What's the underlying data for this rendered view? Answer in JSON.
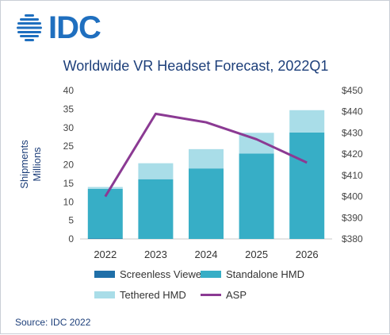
{
  "logo": {
    "text": "IDC"
  },
  "chart_data": {
    "type": "bar",
    "title": "Worldwide VR Headset Forecast, 2022Q1",
    "categories": [
      "2022",
      "2023",
      "2024",
      "2025",
      "2026"
    ],
    "ylabel": "Shipments\nMillions",
    "ylim": [
      0,
      40
    ],
    "yticks": [
      0,
      5,
      10,
      15,
      20,
      25,
      30,
      35,
      40
    ],
    "y2lim": [
      380,
      450
    ],
    "y2ticks": [
      "$380",
      "$390",
      "$400",
      "$410",
      "$420",
      "$430",
      "$440",
      "$450"
    ],
    "y2tick_values": [
      380,
      390,
      400,
      410,
      420,
      430,
      440,
      450
    ],
    "stacked": true,
    "series": [
      {
        "name": "Screenless Viewer",
        "values": [
          0.1,
          0,
          0,
          0,
          0
        ],
        "color": "#1f6fa8"
      },
      {
        "name": "Standalone HMD",
        "values": [
          13.4,
          16.1,
          19.0,
          23.0,
          28.7
        ],
        "color": "#37aec6"
      },
      {
        "name": "Tethered HMD",
        "values": [
          0.5,
          4.3,
          5.2,
          5.6,
          6.0
        ],
        "color": "#a9dde8"
      }
    ],
    "line_series": {
      "name": "ASP",
      "axis": "secondary",
      "values": [
        400,
        439,
        435,
        427,
        416
      ],
      "color": "#8b3a93"
    },
    "grid": false,
    "legend": "bottom"
  },
  "source": "Source: IDC 2022"
}
